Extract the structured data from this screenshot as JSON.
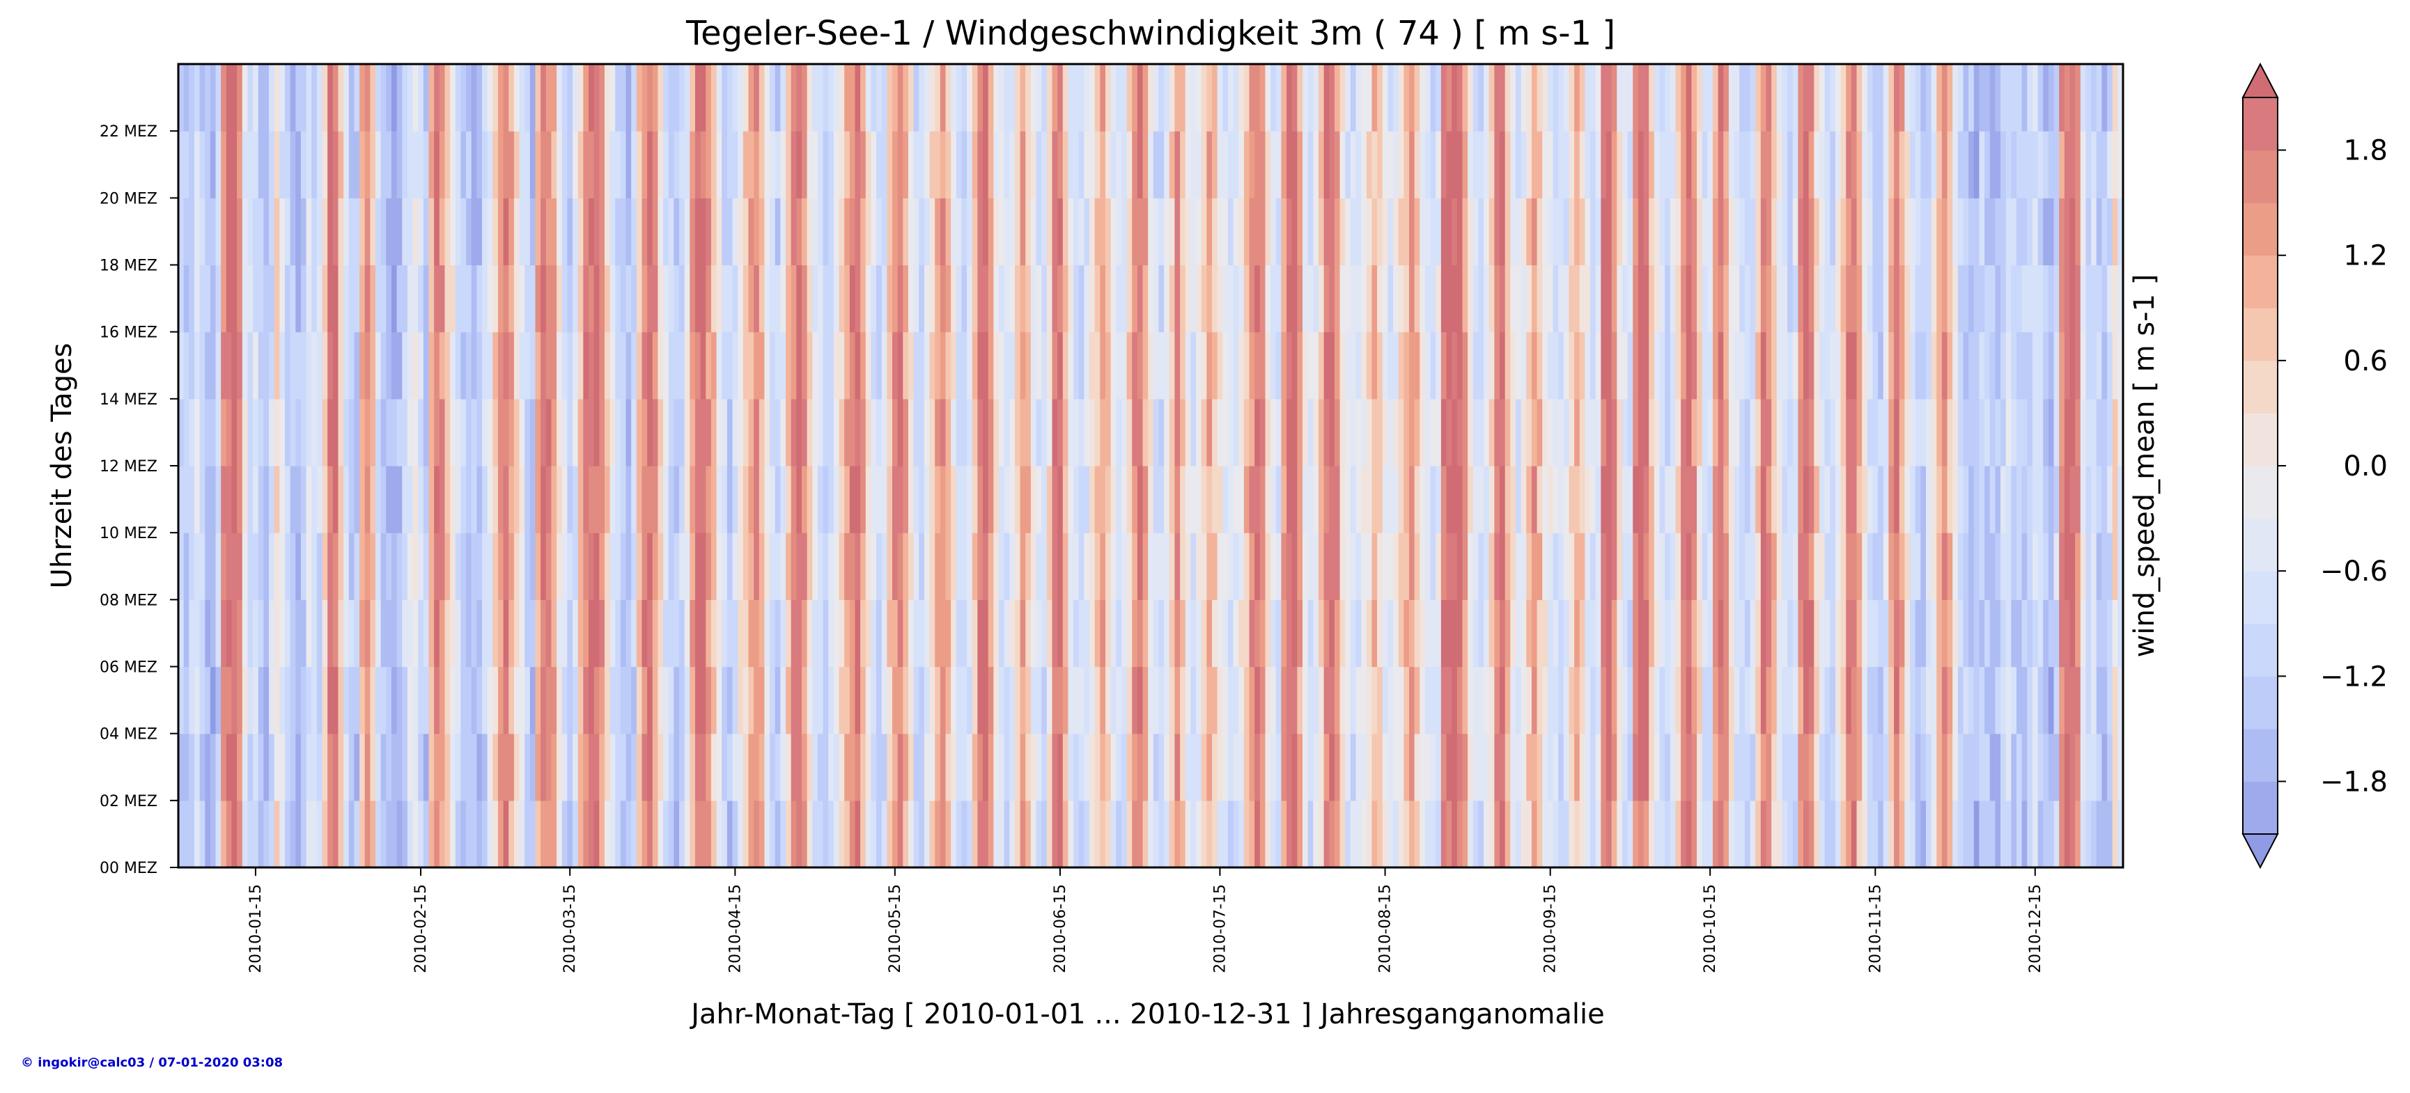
{
  "chart_data": {
    "type": "heatmap",
    "title": "Tegeler-See-1 / Windgeschwindigkeit 3m ( 74 ) [ m s-1 ]",
    "xlabel": "Jahr-Monat-Tag [ 2010-01-01 ... 2010-12-31 ] Jahresganganomalie",
    "ylabel": "Uhrzeit des Tages",
    "colorbar_label": "wind_speed_mean [ m s-1 ]",
    "x_range": [
      "2010-01-01",
      "2010-12-31"
    ],
    "y_range": [
      0,
      24
    ],
    "x_ticks": [
      "2010-01-15",
      "2010-02-15",
      "2010-03-15",
      "2010-04-15",
      "2010-05-15",
      "2010-06-15",
      "2010-07-15",
      "2010-08-15",
      "2010-09-15",
      "2010-10-15",
      "2010-11-15",
      "2010-12-15"
    ],
    "y_ticks": [
      {
        "hour": 0,
        "label": "00 MEZ"
      },
      {
        "hour": 2,
        "label": "02 MEZ"
      },
      {
        "hour": 4,
        "label": "04 MEZ"
      },
      {
        "hour": 6,
        "label": "06 MEZ"
      },
      {
        "hour": 8,
        "label": "08 MEZ"
      },
      {
        "hour": 10,
        "label": "10 MEZ"
      },
      {
        "hour": 12,
        "label": "12 MEZ"
      },
      {
        "hour": 14,
        "label": "14 MEZ"
      },
      {
        "hour": 16,
        "label": "16 MEZ"
      },
      {
        "hour": 18,
        "label": "18 MEZ"
      },
      {
        "hour": 20,
        "label": "20 MEZ"
      },
      {
        "hour": 22,
        "label": "22 MEZ"
      }
    ],
    "colorbar": {
      "levels": [
        -2.1,
        -1.8,
        -1.5,
        -1.2,
        -0.9,
        -0.6,
        -0.3,
        0.0,
        0.3,
        0.6,
        0.9,
        1.2,
        1.5,
        1.8,
        2.1
      ],
      "colors": [
        "#9faaec",
        "#aebcf4",
        "#bdccf9",
        "#cad8fb",
        "#d6e1fa",
        "#e1e7f5",
        "#eaeaee",
        "#f1e4de",
        "#f4d8c8",
        "#f5c7b0",
        "#f3b39a",
        "#ec9d87",
        "#e28b80",
        "#d87a7e"
      ],
      "extend_low_color": "#8f9be4",
      "extend_high_color": "#d06c74",
      "ticks": [
        {
          "value": -1.8,
          "label": "−1.8"
        },
        {
          "value": -1.2,
          "label": "−1.2"
        },
        {
          "value": -0.6,
          "label": "−0.6"
        },
        {
          "value": 0.0,
          "label": "0.0"
        },
        {
          "value": 0.6,
          "label": "0.6"
        },
        {
          "value": 1.2,
          "label": "1.2"
        },
        {
          "value": 1.8,
          "label": "1.8"
        }
      ]
    },
    "day_profile": [
      -1.4,
      -1.5,
      -1.3,
      -0.8,
      -1.2,
      -1.6,
      -1.8,
      -1.2,
      1.4,
      1.9,
      2.1,
      1.6,
      -0.5,
      -1.0,
      -0.9,
      -1.5,
      -1.7,
      -1.1,
      0.2,
      -0.6,
      -1.3,
      -1.6,
      -1.8,
      -1.4,
      -0.7,
      -1.0,
      -1.2,
      0.3,
      1.9,
      2.0,
      0.6,
      -0.8,
      -1.3,
      -1.5,
      0.9,
      1.4,
      0.5,
      -0.9,
      -1.6,
      -1.8,
      -1.9,
      -1.7,
      -1.2,
      -0.6,
      -0.4,
      -1.1,
      -1.5,
      0.8,
      1.7,
      1.2,
      0.4,
      -0.3,
      -1.0,
      -1.4,
      -1.6,
      -1.7,
      -1.8,
      -1.2,
      -0.5,
      0.5,
      1.3,
      1.8,
      1.1,
      0.2,
      -0.5,
      -1.2,
      -1.6,
      0.9,
      1.8,
      1.6,
      1.0,
      -0.2,
      -0.9,
      -1.3,
      -0.8,
      0.6,
      1.5,
      1.7,
      1.9,
      1.4,
      0.3,
      -0.6,
      -1.2,
      -1.5,
      -1.7,
      -1.3,
      0.7,
      1.6,
      1.9,
      1.2,
      0.1,
      -0.8,
      -1.3,
      -1.6,
      -1.2,
      -0.4,
      1.1,
      1.9,
      2.0,
      1.4,
      0.6,
      -0.4,
      -1.1,
      -1.4,
      -0.9,
      -0.2,
      0.5,
      1.0,
      1.4,
      0.8,
      -0.3,
      -1.0,
      -1.3,
      -0.7,
      0.6,
      1.5,
      1.8,
      1.3,
      0.2,
      -0.7,
      -1.1,
      -1.4,
      -1.0,
      -0.4,
      0.3,
      0.9,
      1.6,
      1.9,
      1.1,
      0.0,
      -0.8,
      -1.2,
      -1.0,
      0.4,
      1.3,
      1.7,
      1.0,
      -0.1,
      -0.9,
      -1.2,
      -0.7,
      0.2,
      0.9,
      1.4,
      0.8,
      -0.2,
      -0.9,
      -1.1,
      -0.6,
      0.5,
      1.8,
      2.0,
      1.2,
      -0.2,
      -0.8,
      -1.0,
      -0.5,
      0.4,
      1.2,
      0.6,
      -0.3,
      -0.8,
      -1.0,
      0.1,
      1.6,
      1.9,
      0.9,
      -0.4,
      -0.9,
      -1.1,
      -0.8,
      -0.2,
      0.6,
      1.1,
      0.4,
      -0.6,
      -1.0,
      -0.7,
      0.3,
      1.4,
      1.9,
      1.0,
      -0.3,
      -0.9,
      -1.2,
      -0.6,
      0.5,
      1.5,
      0.7,
      -0.4,
      -0.8,
      -0.5,
      0.3,
      1.0,
      0.5,
      -0.2,
      -0.7,
      -1.0,
      -0.8,
      -0.3,
      0.6,
      1.3,
      1.8,
      1.2,
      0.0,
      -0.7,
      -1.0,
      1.2,
      2.0,
      2.1,
      1.1,
      -0.4,
      -0.9,
      -0.6,
      0.4,
      1.7,
      2.0,
      1.3,
      0.0,
      -0.6,
      -0.9,
      -0.7,
      -0.3,
      0.2,
      0.8,
      0.3,
      -0.4,
      -0.8,
      -0.5,
      0.1,
      0.7,
      1.2,
      0.6,
      -0.3,
      -0.7,
      -0.9,
      -0.6,
      1.9,
      2.1,
      2.1,
      2.0,
      1.1,
      -0.2,
      -0.8,
      -1.0,
      -0.6,
      0.3,
      1.6,
      1.9,
      0.8,
      -0.3,
      -0.8,
      -0.4,
      0.5,
      1.2,
      0.7,
      -0.2,
      -0.6,
      -0.9,
      -1.1,
      -0.7,
      0.2,
      0.9,
      0.4,
      -0.5,
      -0.9,
      -0.6,
      1.8,
      2.1,
      1.4,
      -0.1,
      -0.8,
      -1.0,
      1.6,
      2.1,
      1.9,
      0.6,
      -0.5,
      -0.9,
      -1.1,
      -0.7,
      0.3,
      1.4,
      2.0,
      1.3,
      0.1,
      -0.7,
      -1.0,
      1.1,
      1.9,
      1.2,
      -0.1,
      -0.8,
      -1.1,
      -1.3,
      -0.9,
      0.4,
      1.7,
      1.5,
      0.6,
      -0.4,
      -1.0,
      -1.2,
      -0.8,
      1.3,
      2.0,
      1.6,
      0.3,
      -0.6,
      -1.0,
      -1.2,
      -0.4,
      0.6,
      1.6,
      1.8,
      0.9,
      -0.2,
      -0.9,
      -1.2,
      -1.4,
      -0.8,
      0.9,
      1.9,
      1.1,
      -0.2,
      -1.0,
      -1.3,
      -1.5,
      -1.0,
      -0.3,
      0.8,
      1.5,
      0.7,
      -0.5,
      -1.1,
      -1.4,
      -1.6,
      -1.8,
      -1.3,
      -1.5,
      -1.7,
      -1.6,
      -1.2,
      -0.8,
      -1.4
    ]
  },
  "footer": {
    "credit": "© ingokir@calc03 / 07-01-2020 03:08"
  }
}
